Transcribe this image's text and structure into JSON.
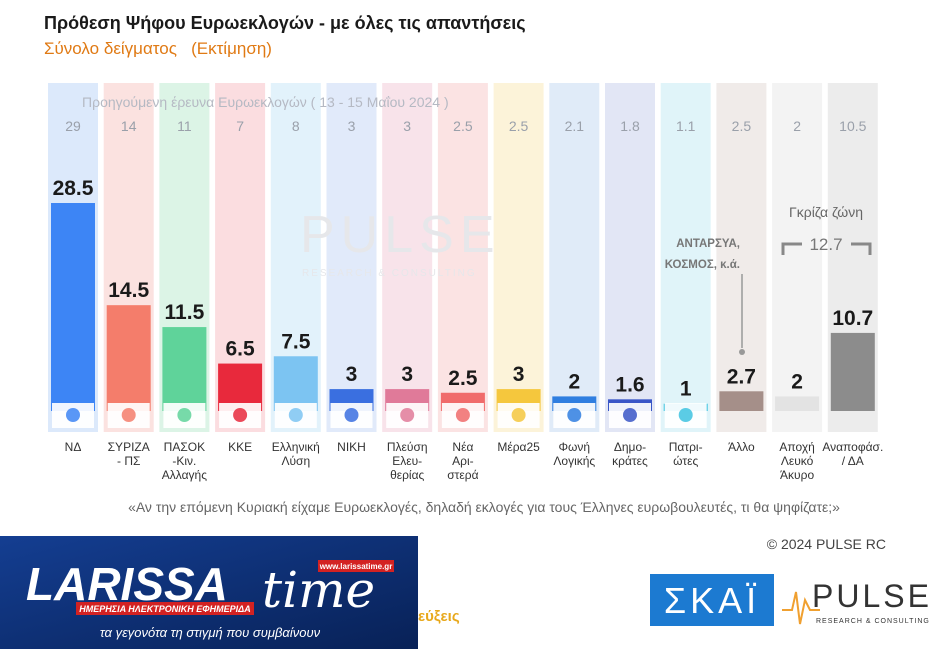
{
  "chart_data": {
    "type": "bar",
    "title": "Πρόθεση Ψήφου Ευρωεκλογών - με όλες τις απαντήσεις",
    "subtitle": "Σύνολο δείγματος   (Εκτίμηση)",
    "previous_label": "Προηγούμενη έρευνα Ευρωεκλογών ( 13 - 15 Μαΐου 2024 )",
    "categories": [
      "ΝΔ",
      "ΣΥΡΙΖΑ - ΠΣ",
      "ΠΑΣΟΚ -Κιν. Αλλαγής",
      "ΚΚΕ",
      "Ελληνική Λύση",
      "ΝΙΚΗ",
      "Πλεύση Ελευ-θερίας",
      "Νέα Αρι-στερά",
      "Μέρα25",
      "Φωνή Λογικής",
      "Δημο-κράτες",
      "Πατρι-ώτες",
      "Άλλο",
      "Αποχή Λευκό Άκυρο",
      "Αναποφάσ. / ΔΑ"
    ],
    "category_lines": [
      [
        "ΝΔ"
      ],
      [
        "ΣΥΡΙΖΑ",
        "- ΠΣ"
      ],
      [
        "ΠΑΣΟΚ",
        "-Κιν.",
        "Αλλαγής"
      ],
      [
        "ΚΚΕ"
      ],
      [
        "Ελληνική",
        "Λύση"
      ],
      [
        "ΝΙΚΗ"
      ],
      [
        "Πλεύση",
        "Ελευ-",
        "θερίας"
      ],
      [
        "Νέα",
        "Αρι-",
        "στερά"
      ],
      [
        "Μέρα25"
      ],
      [
        "Φωνή",
        "Λογικής"
      ],
      [
        "Δημο-",
        "κράτες"
      ],
      [
        "Πατρι-",
        "ώτες"
      ],
      [
        "Άλλο"
      ],
      [
        "Αποχή",
        "Λευκό",
        "Άκυρο"
      ],
      [
        "Αναποφάσ.",
        "/ ΔΑ"
      ]
    ],
    "series": [
      {
        "values": [
          28.5,
          14.5,
          11.5,
          6.5,
          7.5,
          3,
          3,
          2.5,
          3,
          2,
          1.6,
          1,
          2.7,
          2,
          10.7
        ]
      },
      {
        "values": [
          29,
          14,
          11,
          7,
          8,
          3,
          3,
          2.5,
          2.5,
          2.1,
          1.8,
          1.1,
          2.5,
          2,
          10.5
        ]
      }
    ],
    "value_labels": [
      "28.5",
      "14.5",
      "11.5",
      "6.5",
      "7.5",
      "3",
      "3",
      "2.5",
      "3",
      "2",
      "1.6",
      "1",
      "2.7",
      "2",
      "10.7"
    ],
    "previous_labels": [
      "29",
      "14",
      "11",
      "7",
      "8",
      "3",
      "3",
      "2.5",
      "2.5",
      "2.1",
      "1.8",
      "1.1",
      "2.5",
      "2",
      "10.5"
    ],
    "colors": [
      "#3d85f5",
      "#f47d6b",
      "#5fd39a",
      "#e8293c",
      "#7cc4f2",
      "#3a6fe0",
      "#e07a99",
      "#f06b6b",
      "#f5c73d",
      "#2f7ee0",
      "#3a56c7",
      "#3ec3e0",
      "#a58f89",
      "#e3e3e3",
      "#8c8c8c"
    ],
    "bg_colors": [
      "#dce9fb",
      "#fbe2e0",
      "#dcf4e6",
      "#fbdde0",
      "#e2f2fb",
      "#e1eafa",
      "#f8e3ea",
      "#fbe3e3",
      "#fcf3d9",
      "#e0ebf8",
      "#e2e6f5",
      "#e0f4f9",
      "#f0ebe9",
      "#f3f3f3",
      "#ececec"
    ],
    "annotation_other": [
      "ΑΝΤΑΡΣΥΑ,",
      "ΚΟΣΜΟΣ,  κ.ά."
    ],
    "gray_zone_label": "Γκρίζα ζώνη",
    "gray_zone_value": "12.7",
    "question": "«Αν την επόμενη Κυριακή είχαμε Ευρωεκλογές, δηλαδή εκλογές για τους Έλληνες ευρωβουλευτές, τι θα ψηφίζατε;»",
    "copyright": "© 2024 PULSE RC",
    "watermark": "PULSE",
    "watermark_sub": "RESEARCH & CONSULTING",
    "ylim": [
      0,
      30
    ]
  },
  "logos": {
    "larissa_name": "LARISSA",
    "larissa_time": "time",
    "larissa_url": "www.larissatime.gr",
    "larissa_tagline": "ΗΜΕΡΗΣΙΑ ΗΛΕΚΤΡΟΝΙΚΗ ΕΦΗΜΕΡΙΔΑ",
    "larissa_slogan": "τα γεγονότα τη στιγμή που συμβαίνουν",
    "partial_text": "εύξεις",
    "skai": "ΣΚΑΪ",
    "pulse": "PULSE",
    "pulse_sub": "RESEARCH & CONSULTING"
  }
}
